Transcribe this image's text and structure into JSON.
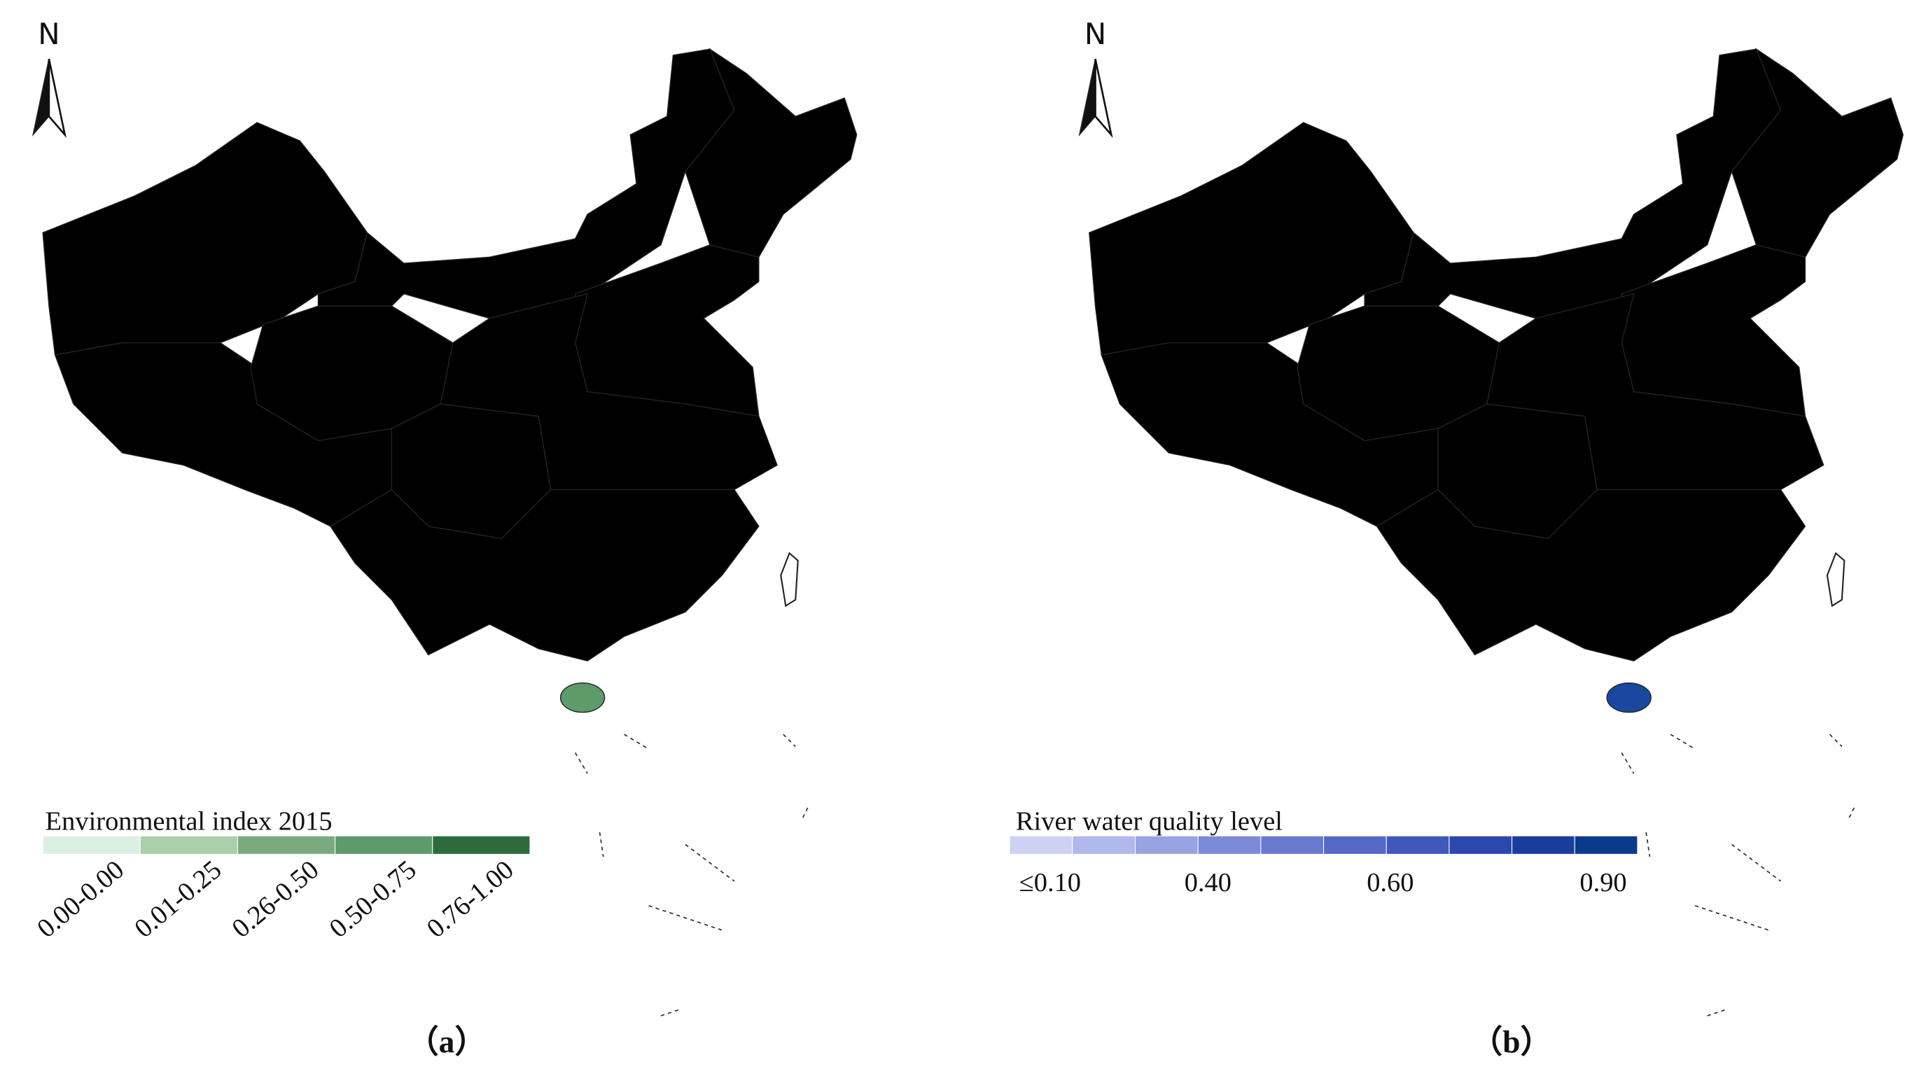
{
  "panels": [
    {
      "north": "N",
      "legend": {
        "title": "Environmental index 2015",
        "colors": [
          "#dcefe2",
          "#a9cfab",
          "#7aab80",
          "#5f9a6a",
          "#2e6b3c"
        ],
        "labels": [
          "0.00-0.00",
          "0.01-0.25",
          "0.26-0.50",
          "0.50-0.75",
          "0.76-1.00"
        ]
      },
      "label": "（a）"
    },
    {
      "north": "N",
      "legend": {
        "title": "River water quality level",
        "colors": [
          "#cdd2f4",
          "#b0b8ec",
          "#98a3e4",
          "#7d8ad8",
          "#6a79cf",
          "#5569c6",
          "#3f58bb",
          "#2c48ad",
          "#1a3c9c",
          "#0a3a8c"
        ],
        "labels": [
          "≤0.10",
          "0.40",
          "0.60",
          "0.90"
        ]
      },
      "label": "（b）"
    }
  ]
}
